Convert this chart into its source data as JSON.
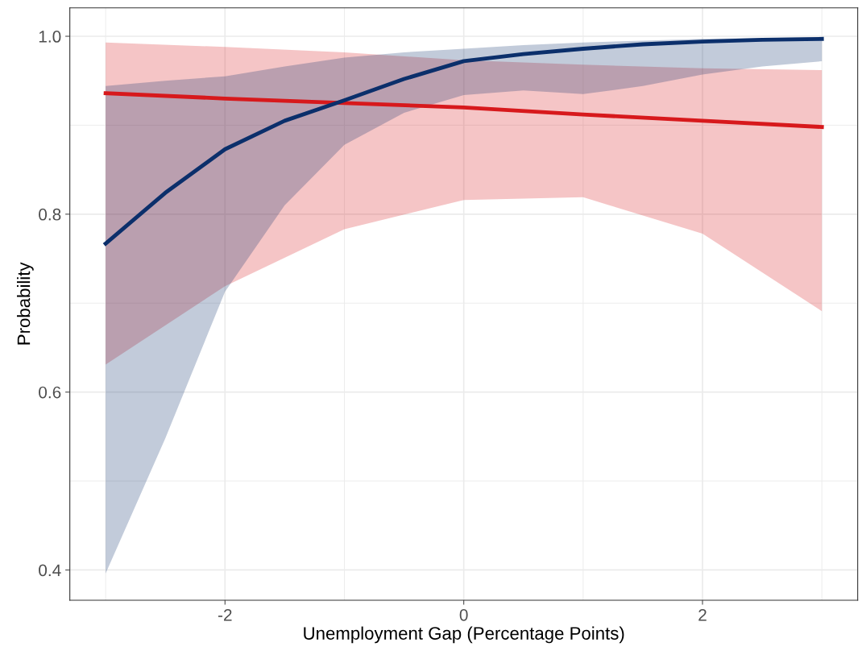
{
  "chart_data": {
    "type": "line",
    "xlabel": "Unemployment Gap (Percentage Points)",
    "ylabel": "Probability",
    "xlim": [
      -3.3,
      3.3
    ],
    "xticks": [
      -2,
      0,
      2
    ],
    "ylim": [
      0.366,
      1.032
    ],
    "yticks": [
      0.4,
      0.6,
      0.8,
      {
        "value": 1,
        "label": "1.0"
      }
    ],
    "grid": true,
    "legend": false,
    "series": [
      {
        "color": "#d7191c",
        "x": [
          -3,
          -2,
          -1,
          0,
          1,
          2,
          3
        ],
        "values": [
          0.936,
          0.93,
          0.925,
          0.92,
          0.912,
          0.905,
          0.898
        ],
        "lower": [
          0.631,
          0.719,
          0.783,
          0.816,
          0.819,
          0.778,
          0.691
        ],
        "upper": [
          0.993,
          0.988,
          0.982,
          0.973,
          0.968,
          0.964,
          0.962
        ]
      },
      {
        "color": "#0b2f6b",
        "x": [
          -3,
          -2.5,
          -2,
          -1.5,
          -1,
          -0.5,
          0,
          0.5,
          1,
          1.5,
          2,
          2.5,
          3
        ],
        "values": [
          0.767,
          0.824,
          0.873,
          0.905,
          0.928,
          0.952,
          0.972,
          0.98,
          0.986,
          0.991,
          0.994,
          0.996,
          0.997
        ],
        "lower": [
          0.396,
          0.548,
          0.713,
          0.81,
          0.878,
          0.914,
          0.934,
          0.939,
          0.935,
          0.944,
          0.957,
          0.966,
          0.972
        ],
        "upper": [
          0.944,
          0.95,
          0.955,
          0.966,
          0.976,
          0.982,
          0.986,
          0.99,
          0.993,
          0.995,
          0.997,
          0.998,
          0.999
        ]
      }
    ]
  }
}
